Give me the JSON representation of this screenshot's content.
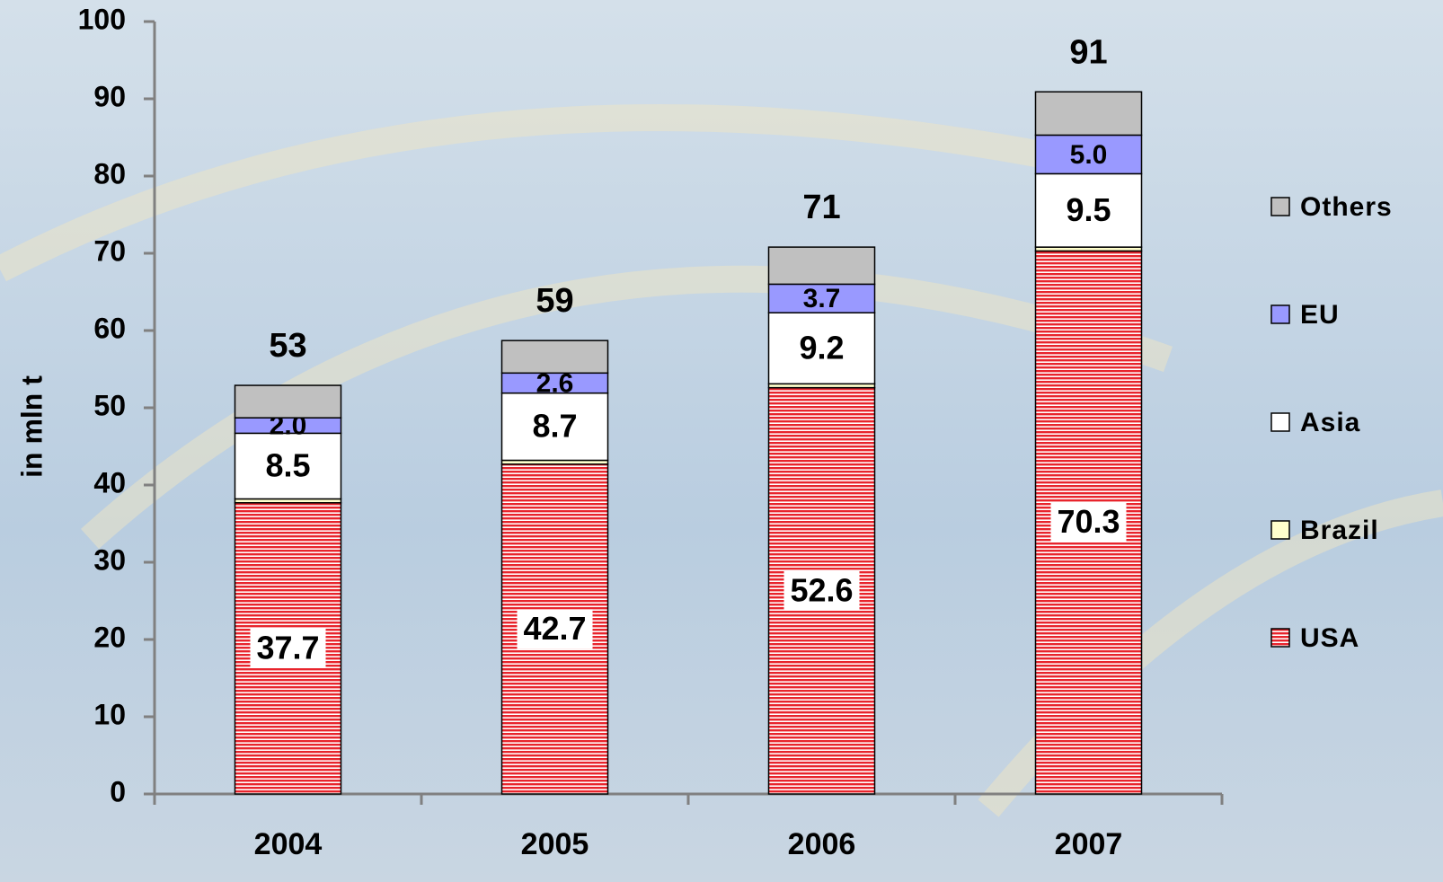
{
  "chart_data": {
    "type": "stacked-bar",
    "y_label": "in mln t",
    "categories": [
      "2004",
      "2005",
      "2006",
      "2007"
    ],
    "series": [
      {
        "name": "USA",
        "color": "#e8242c",
        "values": [
          37.7,
          42.7,
          52.6,
          70.3
        ]
      },
      {
        "name": "Brazil",
        "color": "#ffffcc",
        "values": [
          0.5,
          0.5,
          0.5,
          0.5
        ]
      },
      {
        "name": "Asia",
        "color": "#ffffff",
        "values": [
          8.5,
          8.7,
          9.2,
          9.5
        ]
      },
      {
        "name": "EU",
        "color": "#9999ff",
        "values": [
          2.0,
          2.6,
          3.7,
          5.0
        ],
        "value_labels": [
          "2.0",
          "2.6",
          "3.7",
          "5.0"
        ]
      },
      {
        "name": "Others",
        "color": "#c0c0c0",
        "values": [
          4.2,
          4.2,
          4.8,
          5.6
        ]
      }
    ],
    "labeled_series": [
      0,
      2,
      3
    ],
    "totals": [
      53,
      59,
      71,
      91
    ],
    "ylim": [
      0,
      100
    ],
    "yticks": [
      0,
      10,
      20,
      30,
      40,
      50,
      60,
      70,
      80,
      90,
      100
    ]
  }
}
